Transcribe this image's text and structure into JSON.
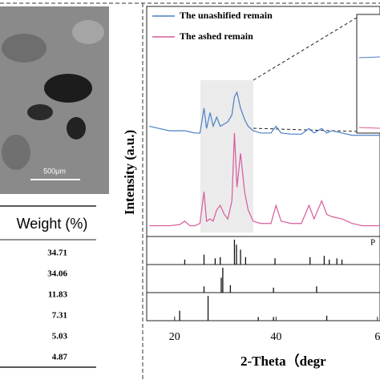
{
  "sem": {
    "scale_label": "500μm"
  },
  "table": {
    "header": "Weight (%)",
    "rows": [
      "34.71",
      "34.06",
      "11.83",
      "7.31",
      "5.03",
      "4.87"
    ]
  },
  "chart_data": {
    "type": "line",
    "ylabel": "Intensity (a.u.)",
    "xlabel": "2-Theta（degr",
    "xlim": [
      14.5,
      60.5
    ],
    "xticks": [
      20,
      40,
      {
        "value": 60,
        "label": "6"
      }
    ],
    "ylim": [
      0,
      100
    ],
    "x": [
      15,
      17,
      19,
      21,
      22,
      23,
      24,
      25,
      25.8,
      26.3,
      27,
      27.6,
      28.3,
      29,
      29.8,
      30.5,
      31.3,
      31.8,
      32.3,
      33,
      33.8,
      34.5,
      35.5,
      37,
      39,
      40,
      41,
      43,
      45,
      46.5,
      47.5,
      49,
      50,
      51,
      53,
      55,
      57,
      59,
      60.5
    ],
    "series": [
      {
        "name": "The unashified remain",
        "color": "#4a7fc8",
        "values": [
          47,
          46,
          45,
          45,
          45,
          44.5,
          44,
          44,
          55,
          46,
          53,
          47,
          51,
          47,
          48,
          49,
          52,
          60,
          62,
          55,
          50,
          47,
          45,
          44,
          44,
          47,
          44,
          43.5,
          43.5,
          46,
          44,
          46,
          44,
          45,
          44,
          43,
          43,
          43,
          43
        ]
      },
      {
        "name": "The ashed remain",
        "color": "#d85a9c",
        "values": [
          3,
          3,
          3,
          3.5,
          5,
          3,
          3,
          4,
          18,
          5,
          6,
          5,
          10,
          12,
          8,
          6,
          14,
          44,
          20,
          35,
          18,
          10,
          5,
          4,
          4,
          12,
          5,
          4,
          4,
          12,
          6,
          14,
          8,
          7,
          6,
          4,
          3,
          3,
          3
        ]
      }
    ],
    "references": [
      {
        "label": "P",
        "x": [
          22,
          25.8,
          28,
          29,
          31.8,
          32.2,
          33,
          34,
          39.8,
          46.7,
          49.5,
          50.5,
          52,
          53
        ],
        "values": [
          20,
          40,
          25,
          30,
          100,
          80,
          60,
          30,
          25,
          30,
          35,
          20,
          25,
          20
        ]
      },
      {
        "x": [
          25.8,
          29.2,
          29.5,
          31,
          39.5,
          48
        ],
        "values": [
          25,
          60,
          100,
          30,
          20,
          25
        ]
      },
      {
        "x": [
          21,
          26.6,
          36.5,
          39.5,
          50
        ],
        "values": [
          40,
          100,
          15,
          15,
          20
        ]
      }
    ]
  }
}
